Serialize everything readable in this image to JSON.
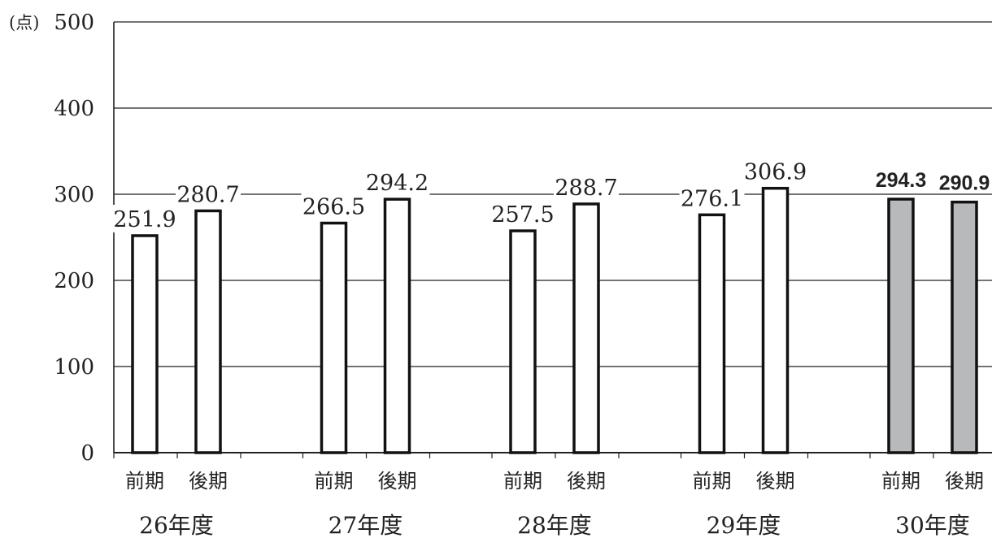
{
  "chart_data": {
    "type": "bar",
    "ylabel": "(点)",
    "ylim": [
      0,
      500
    ],
    "yticks": [
      0,
      100,
      200,
      300,
      400,
      500
    ],
    "grid": true,
    "groups": [
      "26年度",
      "27年度",
      "28年度",
      "29年度",
      "30年度"
    ],
    "sublabels": [
      "前期",
      "後期"
    ],
    "series": [
      {
        "values": [
          251.9,
          266.5,
          257.5,
          276.1,
          294.3
        ]
      },
      {
        "values": [
          280.7,
          294.2,
          288.7,
          306.9,
          290.9
        ]
      }
    ],
    "value_labels": [
      [
        "251.9",
        "280.7"
      ],
      [
        "266.5",
        "294.2"
      ],
      [
        "257.5",
        "288.7"
      ],
      [
        "276.1",
        "306.9"
      ],
      [
        "294.3",
        "290.9"
      ]
    ],
    "highlight_group": "30年度",
    "colors": {
      "bar_fill": "#ffffff",
      "highlight_fill": "#b8b9bb",
      "bar_stroke": "#111111",
      "grid": "#222222",
      "text": "#222222"
    }
  }
}
